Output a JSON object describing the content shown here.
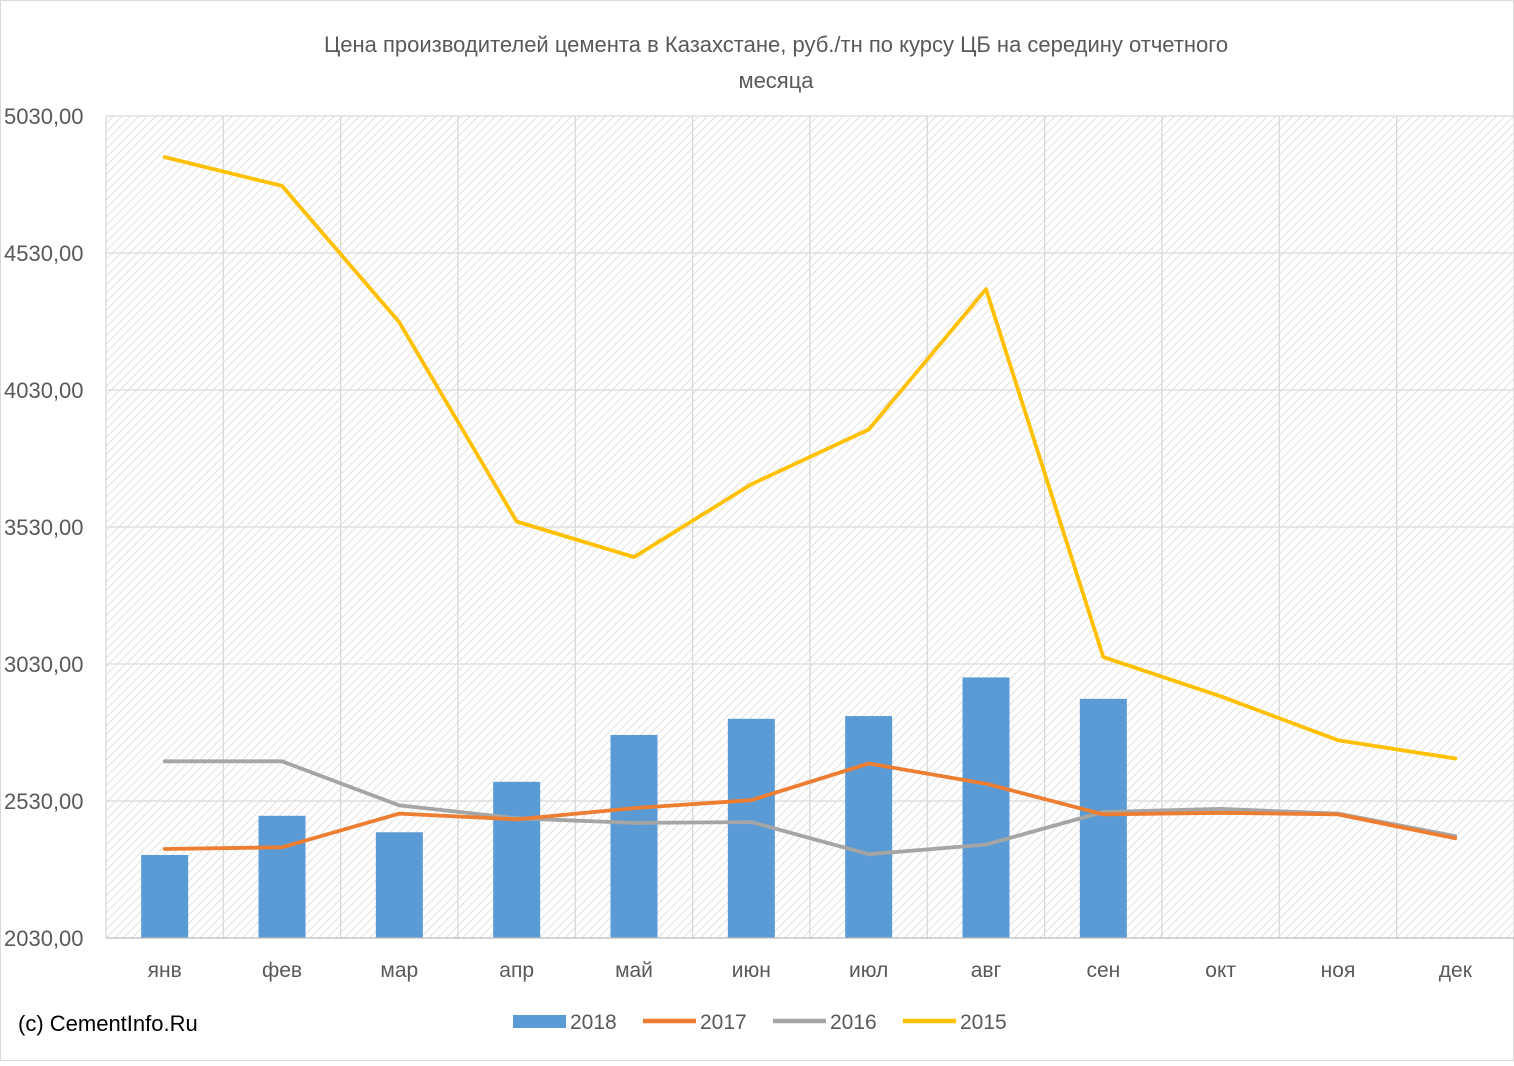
{
  "copyright": "(c) CementInfo.Ru",
  "chart_data": {
    "type": "bar",
    "title": "Цена производителей цемента в Казахстане, руб./тн по курсу ЦБ на середину отчетного месяца",
    "title_lines": [
      "Цена производителей цемента в Казахстане, руб./тн по курсу ЦБ на середину отчетного",
      "месяца"
    ],
    "xlabel": "",
    "ylabel": "",
    "ylim": [
      2030,
      5030
    ],
    "yticks": [
      "2030,00",
      "2530,00",
      "3030,00",
      "3530,00",
      "4030,00",
      "4530,00",
      "5030,00"
    ],
    "ytick_values": [
      2030,
      2530,
      3030,
      3530,
      4030,
      4530,
      5030
    ],
    "categories": [
      "янв",
      "фев",
      "мар",
      "апр",
      "май",
      "июн",
      "июл",
      "авг",
      "сен",
      "окт",
      "ноя",
      "дек"
    ],
    "grid": true,
    "legend_position": "bottom",
    "series": [
      {
        "name": "2018",
        "kind": "bar",
        "color": "#5B9BD5",
        "values": [
          2333,
          2476,
          2416,
          2600,
          2771,
          2830,
          2840,
          2981,
          2903,
          null,
          null,
          null
        ]
      },
      {
        "name": "2017",
        "kind": "line",
        "color": "#ED7D31",
        "values": [
          2355,
          2361,
          2484,
          2463,
          2504,
          2533,
          2667,
          2593,
          2481,
          2487,
          2481,
          2394
        ]
      },
      {
        "name": "2016",
        "kind": "line",
        "color": "#A5A5A5",
        "values": [
          2675,
          2675,
          2514,
          2467,
          2450,
          2453,
          2336,
          2371,
          2490,
          2501,
          2484,
          2402
        ]
      },
      {
        "name": "2015",
        "kind": "line",
        "color": "#FFC000",
        "values": [
          4880,
          4775,
          4277,
          3550,
          3420,
          3686,
          3886,
          4398,
          3055,
          2912,
          2752,
          2685
        ]
      }
    ]
  }
}
